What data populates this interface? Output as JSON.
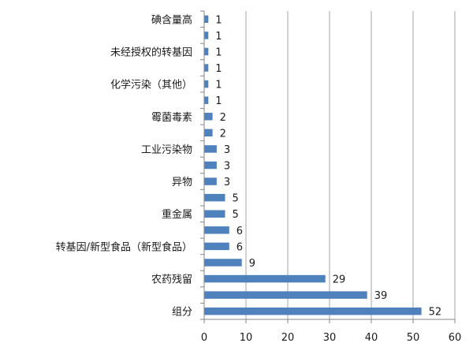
{
  "chart_data": {
    "type": "bar",
    "orientation": "horizontal",
    "title": "",
    "xlabel": "",
    "ylabel": "",
    "categories": [
      "碘含量高",
      "",
      "未经授权的转基因",
      "",
      "化学污染（其他）",
      "",
      "霉菌毒素",
      "",
      "工业污染物",
      "",
      "异物",
      "",
      "重金属",
      "",
      "转基因/新型食品（新型食品）",
      "",
      "农药残留",
      "",
      "组分"
    ],
    "values": [
      1,
      1,
      1,
      1,
      1,
      1,
      2,
      2,
      3,
      3,
      3,
      5,
      5,
      6,
      6,
      9,
      29,
      39,
      52
    ],
    "xlim": [
      0,
      60
    ],
    "xticks": [
      0,
      10,
      20,
      30,
      40,
      50,
      60
    ],
    "grid": "vertical",
    "legend": "none",
    "colors": {
      "bar": "#4f81bd",
      "grid": "#a6a6a6",
      "axis": "#868686"
    }
  }
}
